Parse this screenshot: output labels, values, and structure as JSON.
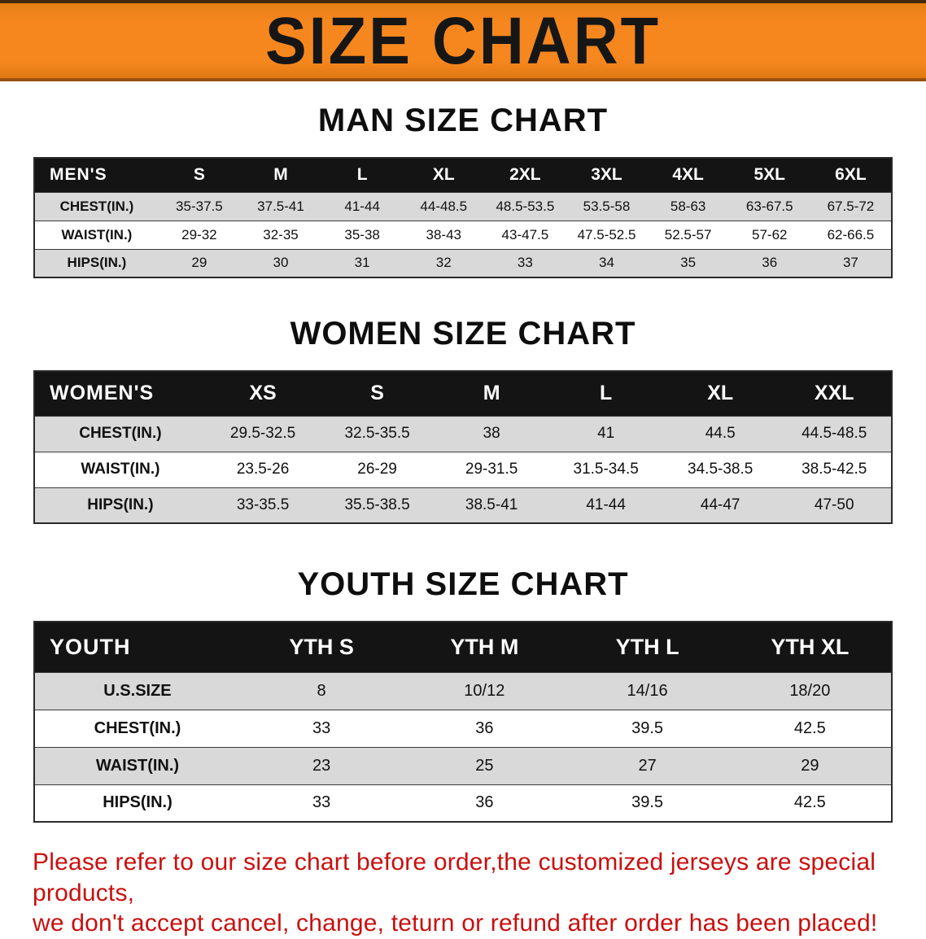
{
  "banner": {
    "title": "SIZE CHART"
  },
  "colors": {
    "banner_bg": "#f6871f",
    "header_row_bg": "#141414",
    "stripe_bg": "#d9d9d9",
    "disclaimer_red": "#c9100f"
  },
  "men": {
    "heading": "MAN SIZE CHART",
    "label": "MEN'S",
    "columns": [
      "S",
      "M",
      "L",
      "XL",
      "2XL",
      "3XL",
      "4XL",
      "5XL",
      "6XL"
    ],
    "rows": [
      {
        "label": "CHEST(IN.)",
        "values": [
          "35-37.5",
          "37.5-41",
          "41-44",
          "44-48.5",
          "48.5-53.5",
          "53.5-58",
          "58-63",
          "63-67.5",
          "67.5-72"
        ]
      },
      {
        "label": "WAIST(IN.)",
        "values": [
          "29-32",
          "32-35",
          "35-38",
          "38-43",
          "43-47.5",
          "47.5-52.5",
          "52.5-57",
          "57-62",
          "62-66.5"
        ]
      },
      {
        "label": "HIPS(IN.)",
        "values": [
          "29",
          "30",
          "31",
          "32",
          "33",
          "34",
          "35",
          "36",
          "37"
        ]
      }
    ]
  },
  "women": {
    "heading": "WOMEN SIZE CHART",
    "label": "WOMEN'S",
    "columns": [
      "XS",
      "S",
      "M",
      "L",
      "XL",
      "XXL"
    ],
    "rows": [
      {
        "label": "CHEST(IN.)",
        "values": [
          "29.5-32.5",
          "32.5-35.5",
          "38",
          "41",
          "44.5",
          "44.5-48.5"
        ]
      },
      {
        "label": "WAIST(IN.)",
        "values": [
          "23.5-26",
          "26-29",
          "29-31.5",
          "31.5-34.5",
          "34.5-38.5",
          "38.5-42.5"
        ]
      },
      {
        "label": "HIPS(IN.)",
        "values": [
          "33-35.5",
          "35.5-38.5",
          "38.5-41",
          "41-44",
          "44-47",
          "47-50"
        ]
      }
    ]
  },
  "youth": {
    "heading": "YOUTH SIZE CHART",
    "label": "YOUTH",
    "columns": [
      "YTH S",
      "YTH M",
      "YTH L",
      "YTH XL"
    ],
    "rows": [
      {
        "label": "U.S.SIZE",
        "values": [
          "8",
          "10/12",
          "14/16",
          "18/20"
        ]
      },
      {
        "label": "CHEST(IN.)",
        "values": [
          "33",
          "36",
          "39.5",
          "42.5"
        ]
      },
      {
        "label": "WAIST(IN.)",
        "values": [
          "23",
          "25",
          "27",
          "29"
        ]
      },
      {
        "label": "HIPS(IN.)",
        "values": [
          "33",
          "36",
          "39.5",
          "42.5"
        ]
      }
    ]
  },
  "disclaimer": {
    "line1": "Please refer to our size chart before order,the customized jerseys are special products,",
    "line2": "we don't accept cancel, change, teturn or refund after order has been placed!"
  }
}
